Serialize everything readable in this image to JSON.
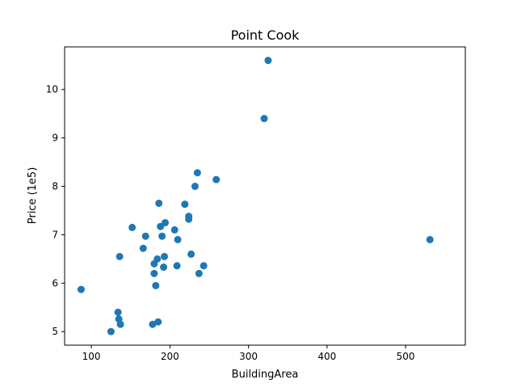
{
  "chart_data": {
    "type": "scatter",
    "title": "Point Cook",
    "xlabel": "BuildingArea",
    "ylabel": "Price (1e5)",
    "xlim": [
      66,
      576
    ],
    "ylim": [
      4.72,
      10.88
    ],
    "xticks": [
      100,
      200,
      300,
      400,
      500
    ],
    "yticks": [
      5,
      6,
      7,
      8,
      9,
      10
    ],
    "grid": false,
    "legend": "none",
    "marker_color": "#1f77b4",
    "series": [
      {
        "points": [
          {
            "x": 87,
            "y": 5.87
          },
          {
            "x": 125,
            "y": 5.0
          },
          {
            "x": 134,
            "y": 5.4
          },
          {
            "x": 135,
            "y": 5.26
          },
          {
            "x": 136,
            "y": 6.55
          },
          {
            "x": 137,
            "y": 5.15
          },
          {
            "x": 152,
            "y": 7.15
          },
          {
            "x": 166,
            "y": 6.72
          },
          {
            "x": 169,
            "y": 6.97
          },
          {
            "x": 178,
            "y": 5.15
          },
          {
            "x": 180,
            "y": 6.4
          },
          {
            "x": 180,
            "y": 6.2
          },
          {
            "x": 182,
            "y": 5.95
          },
          {
            "x": 184,
            "y": 6.5
          },
          {
            "x": 185,
            "y": 5.2
          },
          {
            "x": 186,
            "y": 7.65
          },
          {
            "x": 188,
            "y": 7.17
          },
          {
            "x": 190,
            "y": 6.97
          },
          {
            "x": 192,
            "y": 6.33
          },
          {
            "x": 193,
            "y": 6.55
          },
          {
            "x": 194,
            "y": 7.25
          },
          {
            "x": 206,
            "y": 7.1
          },
          {
            "x": 209,
            "y": 6.36
          },
          {
            "x": 210,
            "y": 6.9
          },
          {
            "x": 219,
            "y": 7.63
          },
          {
            "x": 224,
            "y": 7.38
          },
          {
            "x": 224,
            "y": 7.32
          },
          {
            "x": 227,
            "y": 6.6
          },
          {
            "x": 232,
            "y": 8.0
          },
          {
            "x": 235,
            "y": 8.28
          },
          {
            "x": 237,
            "y": 6.2
          },
          {
            "x": 243,
            "y": 6.36
          },
          {
            "x": 259,
            "y": 8.14
          },
          {
            "x": 320,
            "y": 9.4
          },
          {
            "x": 325,
            "y": 10.6
          },
          {
            "x": 531,
            "y": 6.9
          }
        ]
      }
    ]
  }
}
